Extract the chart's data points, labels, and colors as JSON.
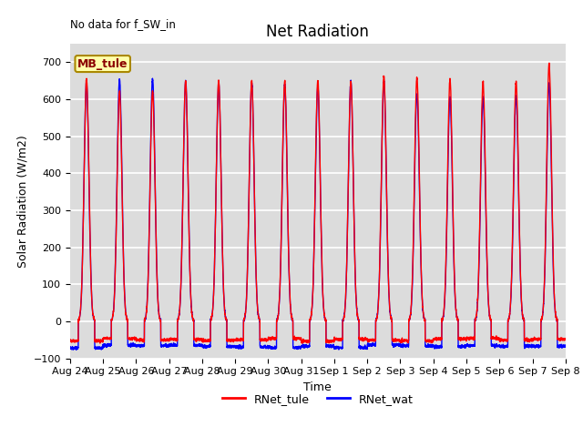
{
  "title": "Net Radiation",
  "xlabel": "Time",
  "ylabel": "Solar Radiation (W/m2)",
  "annotation": "No data for f_SW_in",
  "legend_label1": "MB_tule",
  "legend_label2": "RNet_tule",
  "legend_label3": "RNet_wat",
  "color1": "red",
  "color2": "blue",
  "ylim": [
    -100,
    750
  ],
  "yticks": [
    -100,
    0,
    100,
    200,
    300,
    400,
    500,
    600,
    700
  ],
  "xtick_labels": [
    "Aug 24",
    "Aug 25",
    "Aug 26",
    "Aug 27",
    "Aug 28",
    "Aug 29",
    "Aug 30",
    "Aug 31",
    "Sep 1",
    "Sep 2",
    "Sep 3",
    "Sep 4",
    "Sep 5",
    "Sep 6",
    "Sep 7",
    "Sep 8"
  ],
  "background_color": "#dcdcdc",
  "grid_color": "white",
  "num_days": 15,
  "peak_red": [
    655,
    622,
    622,
    648,
    650,
    650,
    650,
    650,
    650,
    662,
    658,
    652,
    648,
    648,
    697
  ],
  "peak_blue": [
    645,
    655,
    655,
    650,
    645,
    645,
    640,
    635,
    648,
    648,
    615,
    605,
    605,
    610,
    643
  ],
  "night_red": -50,
  "night_blue": -65,
  "title_fontsize": 12,
  "label_fontsize": 9,
  "tick_fontsize": 8,
  "linewidth": 1.0
}
